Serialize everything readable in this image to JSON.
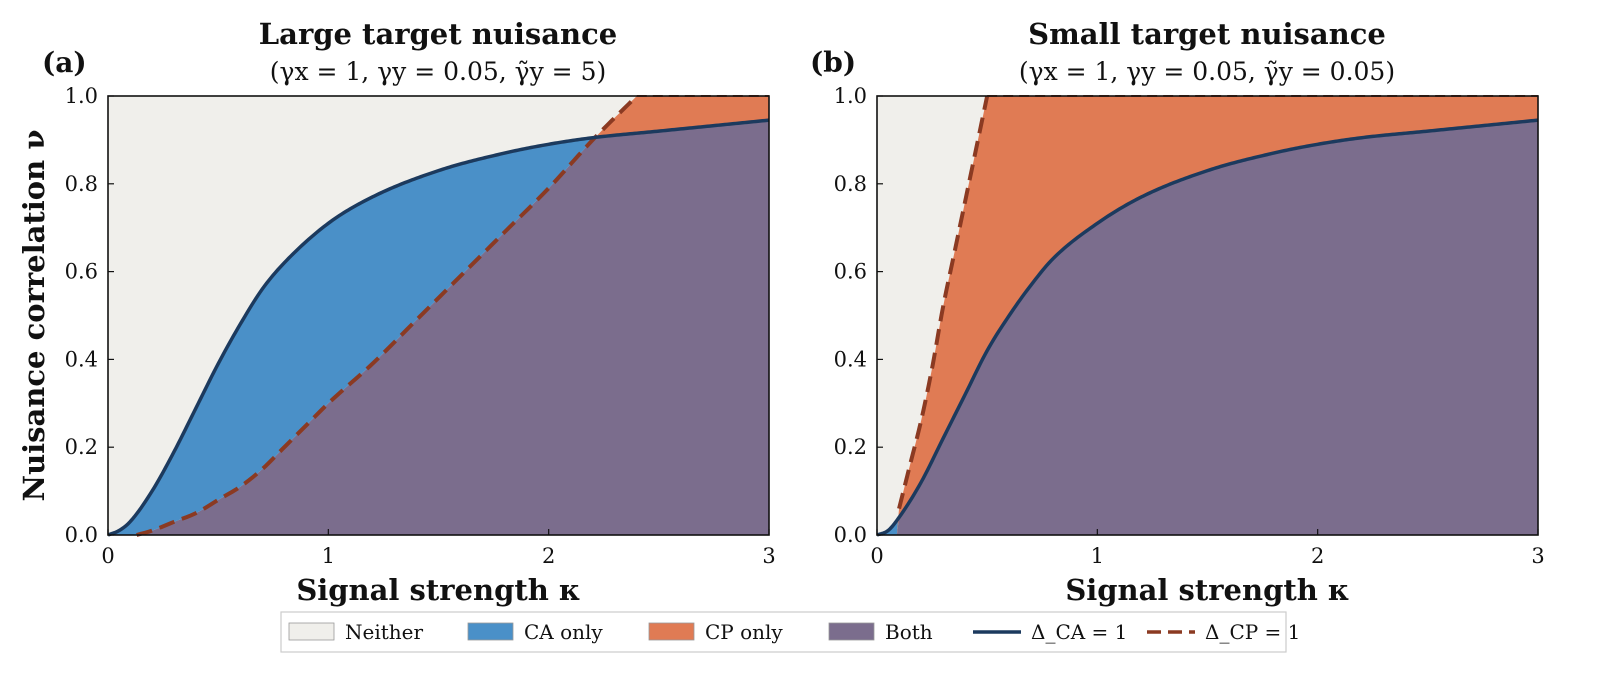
{
  "colors": {
    "neither": "#f0efeb",
    "ca_only": "#4a90c8",
    "cp_only": "#e07b54",
    "both": "#7b6d8d",
    "ca_line": "#1c3a5e",
    "cp_line": "#8b3a22"
  },
  "legend": {
    "items": [
      {
        "label": "Neither",
        "kind": "patch",
        "color_key": "neither"
      },
      {
        "label": "CA only",
        "kind": "patch",
        "color_key": "ca_only"
      },
      {
        "label": "CP only",
        "kind": "patch",
        "color_key": "cp_only"
      },
      {
        "label": "Both",
        "kind": "patch",
        "color_key": "both"
      },
      {
        "label": "Δ_CA = 1",
        "kind": "solid",
        "color_key": "ca_line"
      },
      {
        "label": "Δ_CP = 1",
        "kind": "dashed",
        "color_key": "cp_line"
      }
    ]
  },
  "chart_data": [
    {
      "type": "area",
      "panel_label": "(a)",
      "title": "Large target nuisance",
      "subtitle": "(γx = 1,  γy = 0.05,  γ̃y = 5)",
      "xlabel": "Signal strength κ",
      "ylabel": "Nuisance correlation ν",
      "xlim": [
        0,
        3
      ],
      "ylim": [
        0,
        1
      ],
      "xticks": [
        "0",
        "1",
        "2",
        "3"
      ],
      "yticks": [
        "0.0",
        "0.2",
        "0.4",
        "0.6",
        "0.8",
        "1.0"
      ],
      "series": [
        {
          "name": "Δ_CA = 1",
          "style": "solid",
          "x": [
            0,
            0.05,
            0.1,
            0.2,
            0.3,
            0.4,
            0.5,
            0.6,
            0.7,
            0.8,
            1.0,
            1.2,
            1.5,
            1.8,
            2.0,
            2.2,
            2.5,
            2.8,
            3.0
          ],
          "y": [
            0,
            0.01,
            0.03,
            0.1,
            0.19,
            0.29,
            0.39,
            0.48,
            0.56,
            0.62,
            0.71,
            0.77,
            0.83,
            0.87,
            0.89,
            0.905,
            0.92,
            0.935,
            0.945
          ]
        },
        {
          "name": "Δ_CP = 1",
          "style": "dashed",
          "x": [
            0.13,
            0.2,
            0.3,
            0.4,
            0.5,
            0.6,
            0.7,
            0.8,
            0.9,
            1.0,
            1.2,
            1.4,
            1.6,
            1.8,
            2.0,
            2.2,
            2.4
          ],
          "y": [
            0,
            0.01,
            0.03,
            0.05,
            0.08,
            0.11,
            0.15,
            0.2,
            0.25,
            0.3,
            0.39,
            0.49,
            0.59,
            0.69,
            0.79,
            0.9,
            1.0
          ]
        }
      ]
    },
    {
      "type": "area",
      "panel_label": "(b)",
      "title": "Small target nuisance",
      "subtitle": "(γx = 1,  γy = 0.05,  γ̃y = 0.05)",
      "xlabel": "Signal strength κ",
      "ylabel": "",
      "xlim": [
        0,
        3
      ],
      "ylim": [
        0,
        1
      ],
      "xticks": [
        "0",
        "1",
        "2",
        "3"
      ],
      "yticks": [
        "0.0",
        "0.2",
        "0.4",
        "0.6",
        "0.8",
        "1.0"
      ],
      "series": [
        {
          "name": "Δ_CA = 1",
          "style": "solid",
          "x": [
            0,
            0.05,
            0.1,
            0.2,
            0.3,
            0.4,
            0.5,
            0.6,
            0.7,
            0.8,
            1.0,
            1.2,
            1.5,
            1.8,
            2.0,
            2.2,
            2.5,
            2.8,
            3.0
          ],
          "y": [
            0,
            0.01,
            0.04,
            0.12,
            0.22,
            0.32,
            0.42,
            0.5,
            0.57,
            0.63,
            0.71,
            0.77,
            0.83,
            0.87,
            0.89,
            0.905,
            0.92,
            0.935,
            0.945
          ]
        },
        {
          "name": "Δ_CP = 1",
          "style": "dashed",
          "x": [
            0.1,
            0.15,
            0.2,
            0.25,
            0.3,
            0.35,
            0.4,
            0.45,
            0.5
          ],
          "y": [
            0.06,
            0.16,
            0.26,
            0.38,
            0.52,
            0.64,
            0.76,
            0.88,
            1.0
          ]
        }
      ]
    }
  ]
}
